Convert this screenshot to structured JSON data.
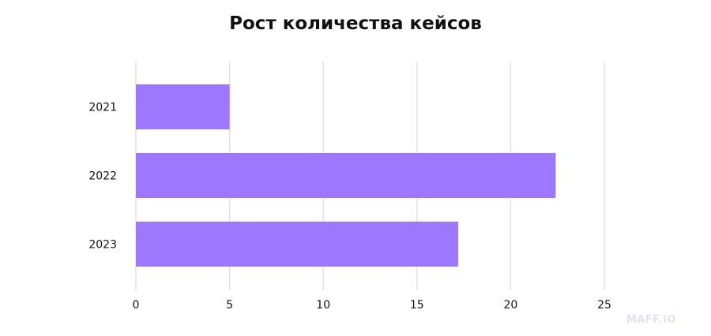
{
  "chart_data": {
    "type": "bar",
    "orientation": "horizontal",
    "title": "Рост количества кейсов",
    "categories": [
      "2021",
      "2022",
      "2023"
    ],
    "values": [
      5,
      22.4,
      17.2
    ],
    "xlim": [
      0,
      25
    ],
    "xticks": [
      0,
      5,
      10,
      15,
      20,
      25
    ],
    "xlabel": "",
    "ylabel": "",
    "grid": "vertical",
    "bar_color": "#9d78ff",
    "grid_color": "#e3e0f0"
  },
  "watermark": "MAFF.IO"
}
